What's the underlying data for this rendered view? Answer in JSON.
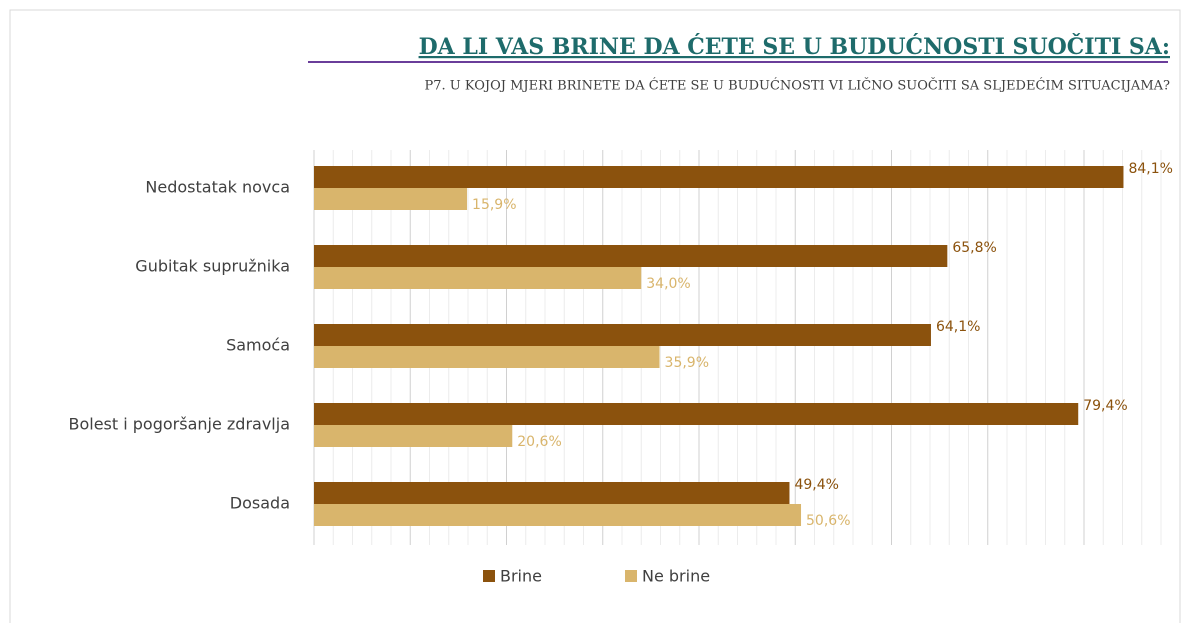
{
  "chart_data": {
    "type": "hbar",
    "title": "DA LI VAS BRINE DA ĆETE SE U BUDUĆNOSTI SUOČITI SA:",
    "subtitle": "P7. U KOJOJ MJERI BRINETE DA ĆETE SE U BUDUĆNOSTI VI LIČNO SUOČITI SA SLJEDEĆIM SITUACIJAMA?",
    "categories": [
      "Nedostatak novca",
      "Gubitak supružnika",
      "Samoća",
      "Bolest i pogoršanje zdravlja",
      "Dosada"
    ],
    "series": [
      {
        "name": "Brine",
        "color": "#8b520d",
        "values": [
          84.1,
          65.8,
          64.1,
          79.4,
          49.4
        ],
        "value_labels": [
          "84,1%",
          "65,8%",
          "64,1%",
          "79,4%",
          "49,4%"
        ]
      },
      {
        "name": "Ne brine",
        "color": "#d9b56c",
        "values": [
          15.9,
          34.0,
          35.9,
          20.6,
          50.6
        ],
        "value_labels": [
          "15,9%",
          "34,0%",
          "35,9%",
          "20,6%",
          "50,6%"
        ]
      }
    ],
    "xlim": [
      0,
      88
    ],
    "xticks": [
      0,
      2,
      4,
      6,
      8,
      10,
      12,
      14,
      16,
      18,
      20,
      22,
      24,
      26,
      28,
      30,
      32,
      34,
      36,
      38,
      40,
      42,
      44,
      46,
      48,
      50,
      52,
      54,
      56,
      58,
      60,
      62,
      64,
      66,
      68,
      70,
      72,
      74,
      76,
      78,
      80,
      82,
      84,
      86,
      88
    ],
    "grid": true,
    "legend": "bottom"
  }
}
